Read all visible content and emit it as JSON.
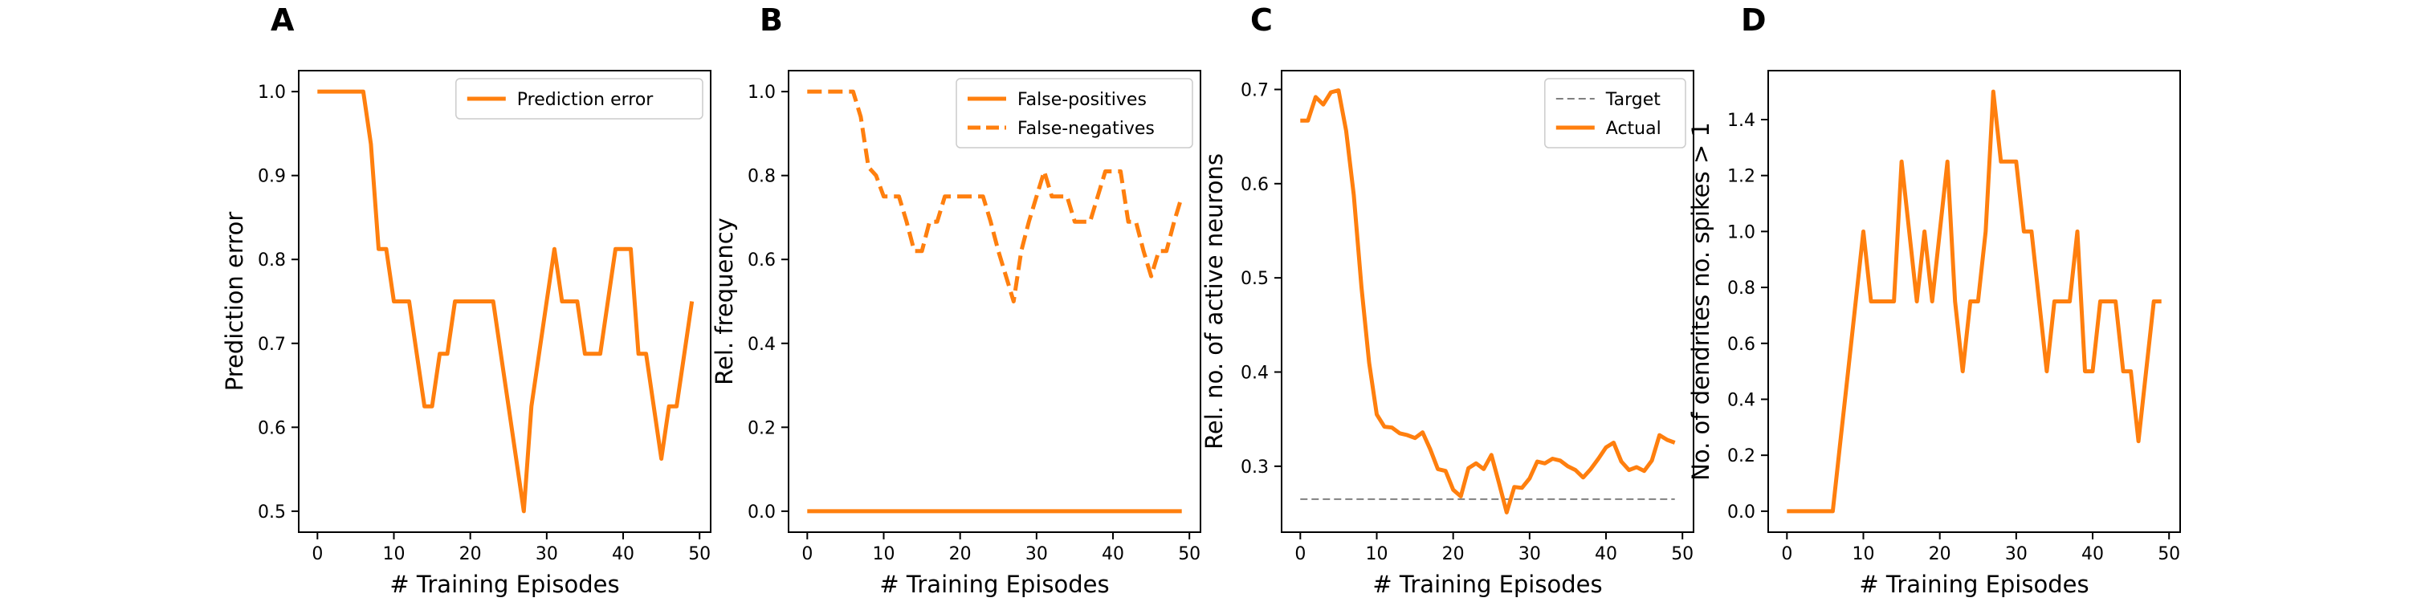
{
  "colors": {
    "orange": "#ff7f0e",
    "gray": "#808080",
    "axis": "#000000"
  },
  "chart_data": [
    {
      "type": "line",
      "panel_letter": "A",
      "xlabel": "# Training Episodes",
      "ylabel": "Prediction error",
      "xlim": [
        -2.45,
        51.45
      ],
      "ylim": [
        0.475,
        1.025
      ],
      "xticks": [
        0,
        10,
        20,
        30,
        40,
        50
      ],
      "xtick_labels": [
        "0",
        "10",
        "20",
        "30",
        "40",
        "50"
      ],
      "yticks": [
        0.5,
        0.6,
        0.7,
        0.8,
        0.9,
        1.0
      ],
      "ytick_labels": [
        "0.5",
        "0.6",
        "0.7",
        "0.8",
        "0.9",
        "1.0"
      ],
      "grid": false,
      "legend_position": "top-right",
      "series": [
        {
          "name": "Prediction error",
          "color": "#ff7f0e",
          "style": "solid",
          "x": [
            0,
            1,
            2,
            3,
            4,
            5,
            6,
            7,
            8,
            9,
            10,
            11,
            12,
            13,
            14,
            15,
            16,
            17,
            18,
            19,
            20,
            21,
            22,
            23,
            24,
            25,
            26,
            27,
            28,
            29,
            30,
            31,
            32,
            33,
            34,
            35,
            36,
            37,
            38,
            39,
            40,
            41,
            42,
            43,
            44,
            45,
            46,
            47,
            48,
            49
          ],
          "y": [
            1.0,
            1.0,
            1.0,
            1.0,
            1.0,
            1.0,
            1.0,
            0.9375,
            0.8125,
            0.8125,
            0.75,
            0.75,
            0.75,
            0.6875,
            0.625,
            0.625,
            0.6875,
            0.6875,
            0.75,
            0.75,
            0.75,
            0.75,
            0.75,
            0.75,
            0.6875,
            0.625,
            0.5625,
            0.5,
            0.625,
            0.6875,
            0.75,
            0.8125,
            0.75,
            0.75,
            0.75,
            0.6875,
            0.6875,
            0.6875,
            0.75,
            0.8125,
            0.8125,
            0.8125,
            0.6875,
            0.6875,
            0.625,
            0.5625,
            0.625,
            0.625,
            0.6875,
            0.75
          ]
        }
      ]
    },
    {
      "type": "line",
      "panel_letter": "B",
      "xlabel": "# Training Episodes",
      "ylabel": "Rel. frequency",
      "xlim": [
        -2.45,
        51.45
      ],
      "ylim": [
        -0.05,
        1.05
      ],
      "xticks": [
        0,
        10,
        20,
        30,
        40,
        50
      ],
      "xtick_labels": [
        "0",
        "10",
        "20",
        "30",
        "40",
        "50"
      ],
      "yticks": [
        0.0,
        0.2,
        0.4,
        0.6,
        0.8,
        1.0
      ],
      "ytick_labels": [
        "0.0",
        "0.2",
        "0.4",
        "0.6",
        "0.8",
        "1.0"
      ],
      "grid": false,
      "legend_position": "top-right",
      "series": [
        {
          "name": "False-positives",
          "color": "#ff7f0e",
          "style": "solid",
          "x": [
            0,
            1,
            2,
            3,
            4,
            5,
            6,
            7,
            8,
            9,
            10,
            11,
            12,
            13,
            14,
            15,
            16,
            17,
            18,
            19,
            20,
            21,
            22,
            23,
            24,
            25,
            26,
            27,
            28,
            29,
            30,
            31,
            32,
            33,
            34,
            35,
            36,
            37,
            38,
            39,
            40,
            41,
            42,
            43,
            44,
            45,
            46,
            47,
            48,
            49
          ],
          "y": [
            0,
            0,
            0,
            0,
            0,
            0,
            0,
            0,
            0,
            0,
            0,
            0,
            0,
            0,
            0,
            0,
            0,
            0,
            0,
            0,
            0,
            0,
            0,
            0,
            0,
            0,
            0,
            0,
            0,
            0,
            0,
            0,
            0,
            0,
            0,
            0,
            0,
            0,
            0,
            0,
            0,
            0,
            0,
            0,
            0,
            0,
            0,
            0,
            0,
            0
          ]
        },
        {
          "name": "False-negatives",
          "color": "#ff7f0e",
          "style": "dashed",
          "x": [
            0,
            1,
            2,
            3,
            4,
            5,
            6,
            7,
            8,
            9,
            10,
            11,
            12,
            13,
            14,
            15,
            16,
            17,
            18,
            19,
            20,
            21,
            22,
            23,
            24,
            25,
            26,
            27,
            28,
            29,
            30,
            31,
            32,
            33,
            34,
            35,
            36,
            37,
            38,
            39,
            40,
            41,
            42,
            43,
            44,
            45,
            46,
            47,
            48,
            49
          ],
          "y": [
            1.0,
            1.0,
            1.0,
            1.0,
            1.0,
            1.0,
            1.0,
            0.94,
            0.82,
            0.8,
            0.75,
            0.75,
            0.75,
            0.69,
            0.62,
            0.62,
            0.69,
            0.69,
            0.75,
            0.75,
            0.75,
            0.75,
            0.75,
            0.75,
            0.69,
            0.62,
            0.56,
            0.5,
            0.62,
            0.69,
            0.75,
            0.81,
            0.75,
            0.75,
            0.75,
            0.69,
            0.69,
            0.69,
            0.75,
            0.81,
            0.81,
            0.81,
            0.69,
            0.69,
            0.62,
            0.56,
            0.62,
            0.62,
            0.69,
            0.75
          ]
        }
      ]
    },
    {
      "type": "line",
      "panel_letter": "C",
      "xlabel": "# Training Episodes",
      "ylabel": "Rel. no. of active neurons",
      "xlim": [
        -2.45,
        51.45
      ],
      "ylim": [
        0.23,
        0.72
      ],
      "xticks": [
        0,
        10,
        20,
        30,
        40,
        50
      ],
      "xtick_labels": [
        "0",
        "10",
        "20",
        "30",
        "40",
        "50"
      ],
      "yticks": [
        0.3,
        0.4,
        0.5,
        0.6,
        0.7
      ],
      "ytick_labels": [
        "0.3",
        "0.4",
        "0.5",
        "0.6",
        "0.7"
      ],
      "grid": false,
      "legend_position": "top-right",
      "series": [
        {
          "name": "Target",
          "color": "#808080",
          "style": "dashed",
          "width": 2,
          "x": [
            0,
            49
          ],
          "y": [
            0.265,
            0.265
          ]
        },
        {
          "name": "Actual",
          "color": "#ff7f0e",
          "style": "solid",
          "x": [
            0,
            1,
            2,
            3,
            4,
            5,
            6,
            7,
            8,
            9,
            10,
            11,
            12,
            13,
            14,
            15,
            16,
            17,
            18,
            19,
            20,
            21,
            22,
            23,
            24,
            25,
            26,
            27,
            28,
            29,
            30,
            31,
            32,
            33,
            34,
            35,
            36,
            37,
            38,
            39,
            40,
            41,
            42,
            43,
            44,
            45,
            46,
            47,
            48,
            49
          ],
          "y": [
            0.667,
            0.667,
            0.692,
            0.684,
            0.697,
            0.699,
            0.656,
            0.588,
            0.49,
            0.41,
            0.355,
            0.342,
            0.341,
            0.335,
            0.333,
            0.33,
            0.336,
            0.318,
            0.297,
            0.295,
            0.275,
            0.268,
            0.298,
            0.303,
            0.297,
            0.312,
            0.282,
            0.251,
            0.278,
            0.277,
            0.287,
            0.305,
            0.303,
            0.308,
            0.306,
            0.3,
            0.296,
            0.288,
            0.297,
            0.308,
            0.32,
            0.325,
            0.305,
            0.296,
            0.299,
            0.295,
            0.306,
            0.333,
            0.328,
            0.325
          ]
        }
      ]
    },
    {
      "type": "line",
      "panel_letter": "D",
      "xlabel": "# Training Episodes",
      "ylabel": "No. of dendrites no. spikes > 1",
      "xlim": [
        -2.45,
        51.45
      ],
      "ylim": [
        -0.075,
        1.575
      ],
      "xticks": [
        0,
        10,
        20,
        30,
        40,
        50
      ],
      "xtick_labels": [
        "0",
        "10",
        "20",
        "30",
        "40",
        "50"
      ],
      "yticks": [
        0.0,
        0.2,
        0.4,
        0.6,
        0.8,
        1.0,
        1.2,
        1.4
      ],
      "ytick_labels": [
        "0.0",
        "0.2",
        "0.4",
        "0.6",
        "0.8",
        "1.0",
        "1.2",
        "1.4"
      ],
      "grid": false,
      "legend_position": "none",
      "series": [
        {
          "color": "#ff7f0e",
          "style": "solid",
          "x": [
            0,
            1,
            2,
            3,
            4,
            5,
            6,
            7,
            8,
            9,
            10,
            11,
            12,
            13,
            14,
            15,
            16,
            17,
            18,
            19,
            20,
            21,
            22,
            23,
            24,
            25,
            26,
            27,
            28,
            29,
            30,
            31,
            32,
            33,
            34,
            35,
            36,
            37,
            38,
            39,
            40,
            41,
            42,
            43,
            44,
            45,
            46,
            47,
            48,
            49
          ],
          "y": [
            0,
            0,
            0,
            0,
            0,
            0,
            0,
            0.25,
            0.5,
            0.75,
            1.0,
            0.75,
            0.75,
            0.75,
            0.75,
            1.25,
            1.0,
            0.75,
            1.0,
            0.75,
            1.0,
            1.25,
            0.75,
            0.5,
            0.75,
            0.75,
            1.0,
            1.5,
            1.25,
            1.25,
            1.25,
            1.0,
            1.0,
            0.75,
            0.5,
            0.75,
            0.75,
            0.75,
            1.0,
            0.5,
            0.5,
            0.75,
            0.75,
            0.75,
            0.5,
            0.5,
            0.25,
            0.5,
            0.75,
            0.75
          ]
        }
      ]
    }
  ]
}
